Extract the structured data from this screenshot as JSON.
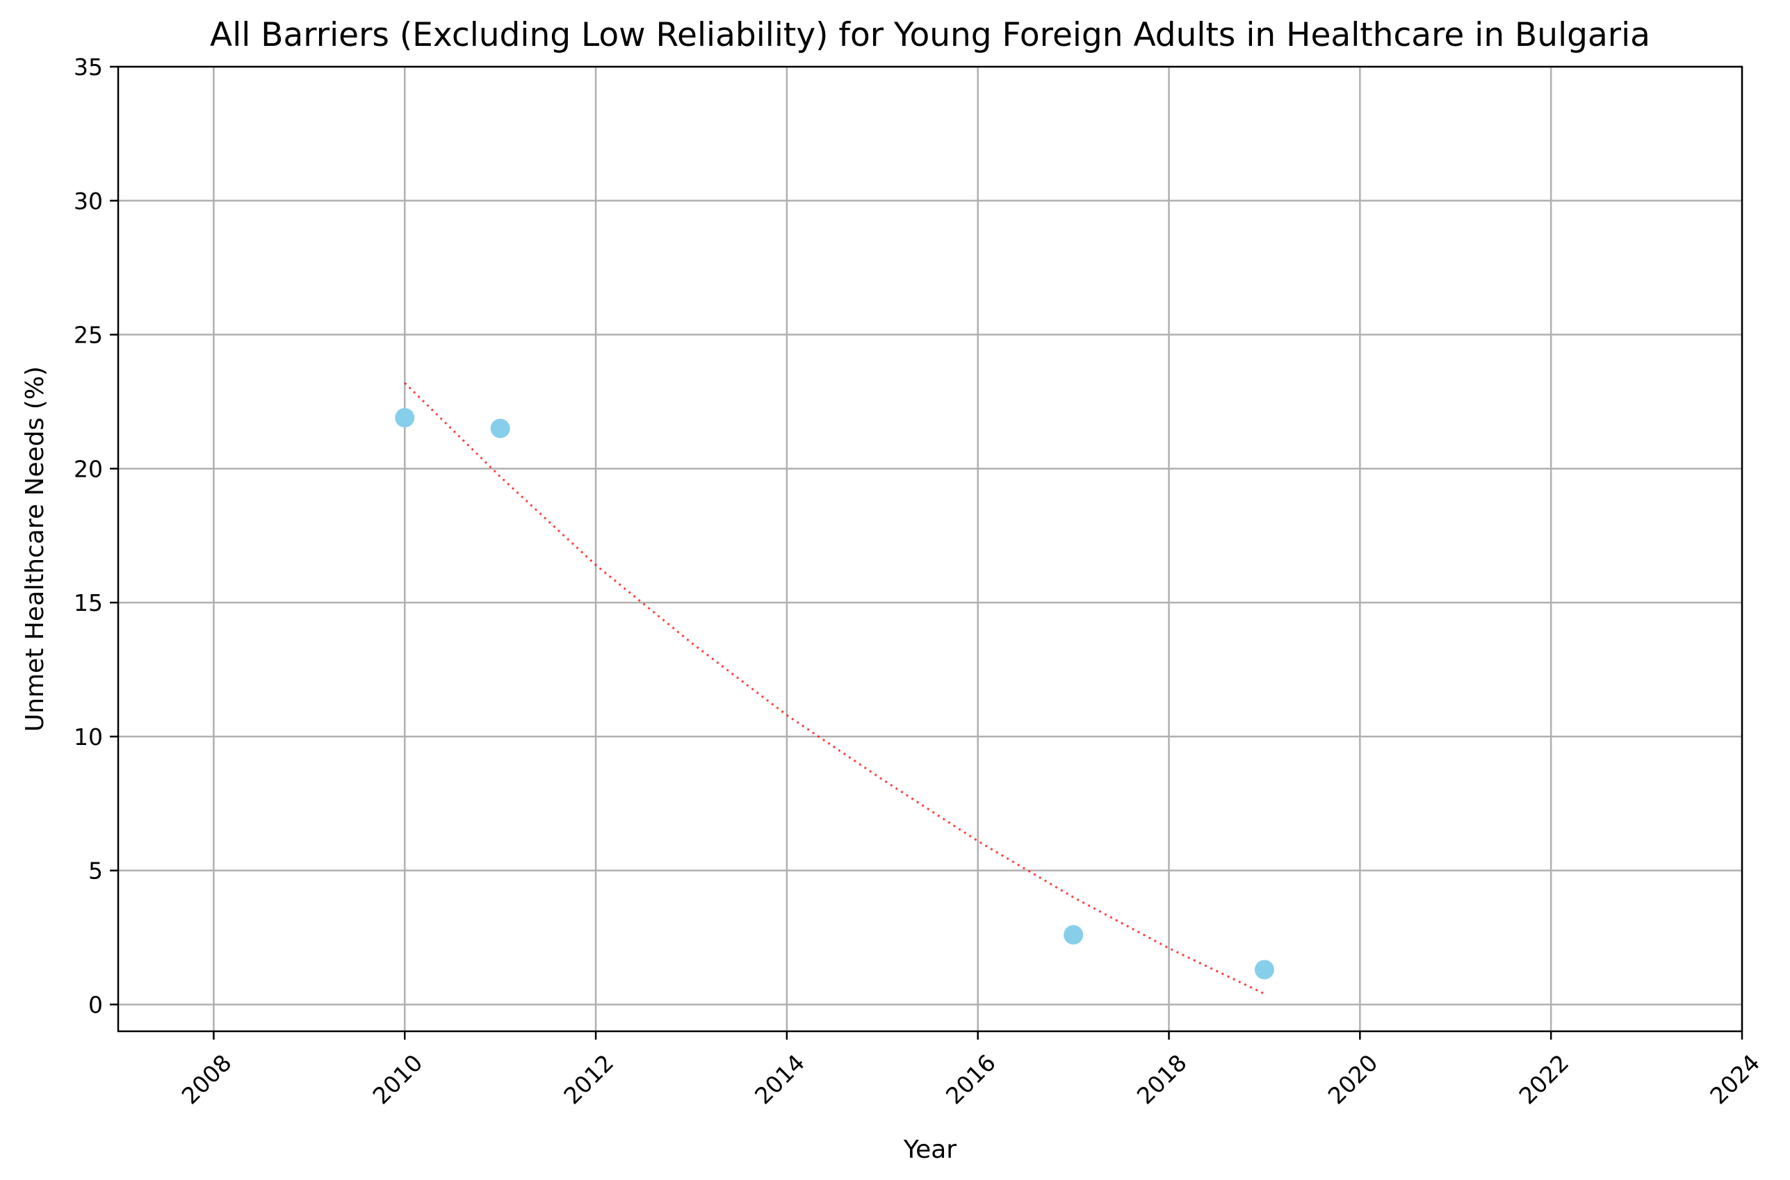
{
  "chart_data": {
    "type": "scatter",
    "title": "All Barriers (Excluding Low Reliability) for Young Foreign Adults in Healthcare in Bulgaria",
    "xlabel": "Year",
    "ylabel": "Unmet Healthcare Needs (%)",
    "xlim": [
      2007,
      2024
    ],
    "ylim": [
      -1,
      35
    ],
    "x_ticks": [
      2008,
      2010,
      2012,
      2014,
      2016,
      2018,
      2020,
      2022,
      2024
    ],
    "y_ticks": [
      0,
      5,
      10,
      15,
      20,
      25,
      30,
      35
    ],
    "grid": true,
    "points": [
      {
        "x": 2010,
        "y": 21.9
      },
      {
        "x": 2011,
        "y": 21.5
      },
      {
        "x": 2017,
        "y": 2.6
      },
      {
        "x": 2019,
        "y": 1.3
      }
    ],
    "trend_line": {
      "style": "dotted",
      "x": [
        2010,
        2011,
        2012,
        2013,
        2014,
        2015,
        2016,
        2017,
        2018,
        2019
      ],
      "y": [
        23.2,
        19.7,
        16.4,
        13.5,
        10.8,
        8.4,
        6.1,
        4.0,
        2.1,
        0.4
      ]
    },
    "colors": {
      "points": "#87ceeb",
      "trend_line": "#ff0000"
    }
  }
}
